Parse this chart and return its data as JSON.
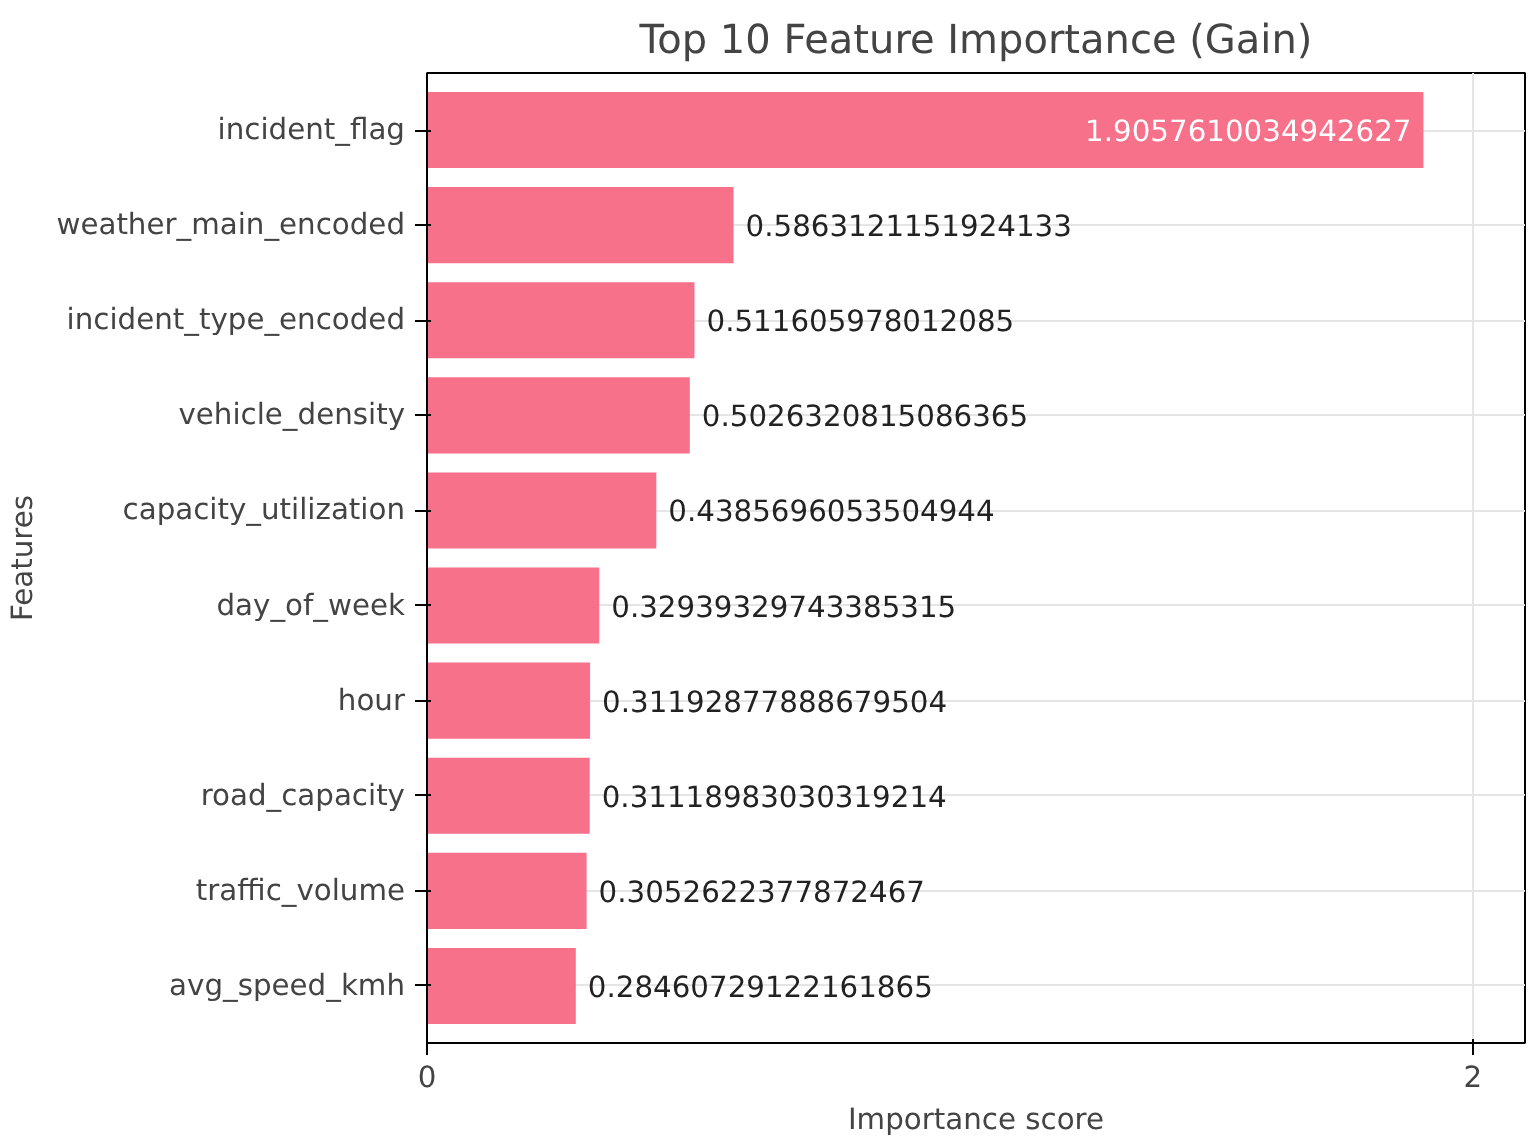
{
  "chart_data": {
    "type": "bar",
    "orientation": "horizontal",
    "title": "Top 10 Feature Importance (Gain)",
    "xlabel": "Importance score",
    "ylabel": "Features",
    "categories": [
      "incident_flag",
      "weather_main_encoded",
      "incident_type_encoded",
      "vehicle_density",
      "capacity_utilization",
      "day_of_week",
      "hour",
      "road_capacity",
      "traffic_volume",
      "avg_speed_kmh"
    ],
    "values": [
      1.9057610034942627,
      0.5863121151924133,
      0.511605978012085,
      0.5026320815086365,
      0.4385696053504944,
      0.32939329743385315,
      0.31192877888679504,
      0.31118983030319214,
      0.3052622377872467,
      0.28460729122161865
    ],
    "color": "#f7718a",
    "xlim": [
      0,
      2.1
    ],
    "xticks": [
      0,
      2
    ],
    "grid": true,
    "data_labels": true
  }
}
